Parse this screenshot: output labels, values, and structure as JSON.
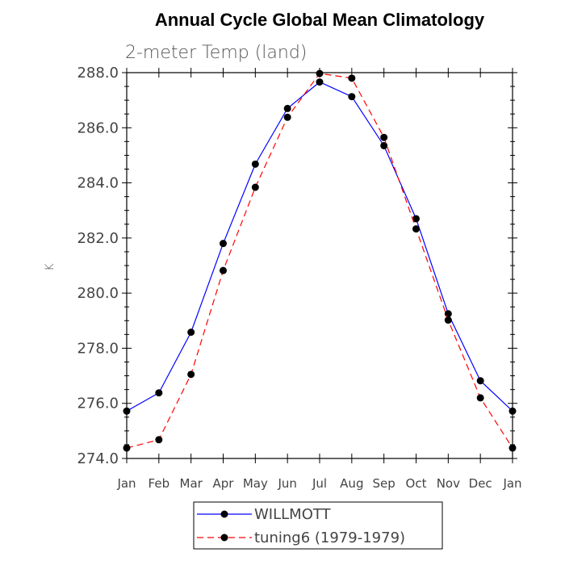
{
  "chart_data": {
    "type": "line",
    "title": "Annual Cycle Global Mean Climatology",
    "subtitle": "2-meter Temp (land)",
    "xlabel": "",
    "ylabel": "K",
    "categories": [
      "Jan",
      "Feb",
      "Mar",
      "Apr",
      "May",
      "Jun",
      "Jul",
      "Aug",
      "Sep",
      "Oct",
      "Nov",
      "Dec",
      "Jan"
    ],
    "ylim": [
      274.0,
      288.0
    ],
    "yticks": [
      "274.0",
      "276.0",
      "278.0",
      "280.0",
      "282.0",
      "284.0",
      "286.0",
      "288.0"
    ],
    "series": [
      {
        "name": "WILLMOTT",
        "color": "#0000ff",
        "style": "solid",
        "values": [
          275.72,
          276.38,
          278.58,
          281.8,
          284.68,
          286.7,
          287.66,
          287.13,
          285.35,
          282.7,
          279.25,
          276.82,
          275.72
        ]
      },
      {
        "name": "tuning6 (1979-1979)",
        "color": "#ff0000",
        "style": "dashed",
        "values": [
          274.38,
          274.68,
          277.05,
          280.82,
          283.84,
          286.38,
          287.97,
          287.8,
          285.65,
          282.33,
          279.02,
          276.2,
          274.38
        ]
      }
    ]
  }
}
